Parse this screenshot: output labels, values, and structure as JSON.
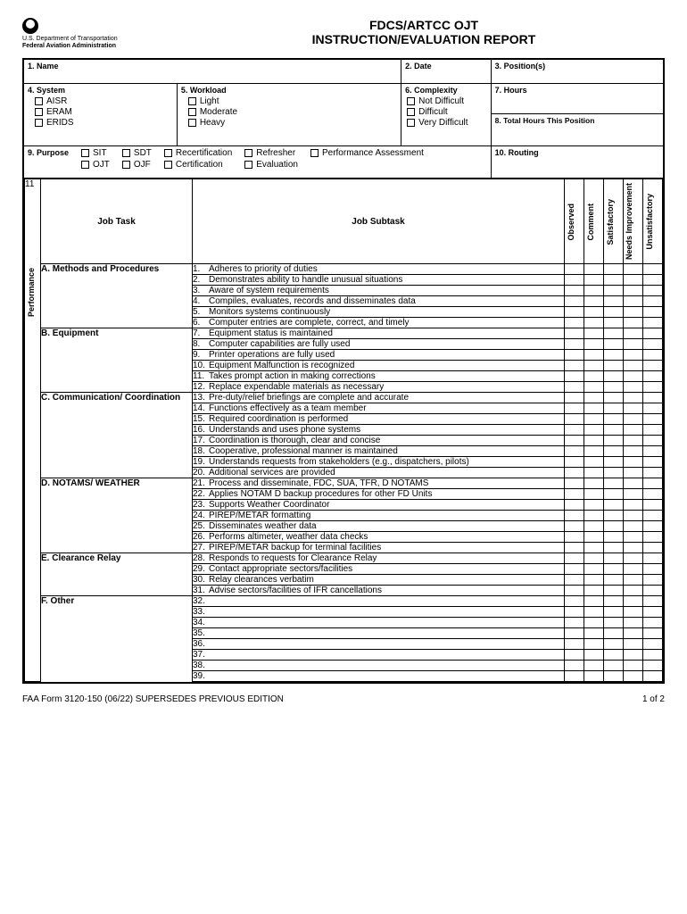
{
  "header": {
    "dept1": "U.S. Department of Transportation",
    "dept2": "Federal Aviation Administration",
    "title1": "FDCS/ARTCC OJT",
    "title2": "INSTRUCTION/EVALUATION REPORT"
  },
  "fields": {
    "f1": "1. Name",
    "f2": "2. Date",
    "f3": "3. Position(s)",
    "f4": "4. System",
    "f4a": "AISR",
    "f4b": "ERAM",
    "f4c": "ERIDS",
    "f5": "5. Workload",
    "f5a": "Light",
    "f5b": "Moderate",
    "f5c": "Heavy",
    "f6": "6. Complexity",
    "f6a": "Not Difficult",
    "f6b": "Difficult",
    "f6c": "Very Difficult",
    "f7": "7. Hours",
    "f8": "8. Total Hours This Position",
    "f9": "9. Purpose",
    "f9a": "SIT",
    "f9b": "OJT",
    "f9c": "SDT",
    "f9d": "OJF",
    "f9e": "Recertification",
    "f9f": "Certification",
    "f9g": "Refresher",
    "f9h": "Evaluation",
    "f9i": "Performance Assessment",
    "f10": "10. Routing",
    "f11": "11"
  },
  "cols": {
    "jobtask": "Job Task",
    "jobsubtask": "Job Subtask",
    "observed": "Observed",
    "comment": "Comment",
    "satisfactory": "Satisfactory",
    "needs": "Needs Improvement",
    "unsatisfactory": "Unsatisfactory",
    "performance": "Performance"
  },
  "sections": [
    {
      "label": "A. Methods and Procedures",
      "rows": [
        {
          "n": "1.",
          "t": "Adheres to priority of duties"
        },
        {
          "n": "2.",
          "t": "Demonstrates ability to handle unusual situations"
        },
        {
          "n": "3.",
          "t": "Aware of system requirements"
        },
        {
          "n": "4.",
          "t": "Compiles, evaluates, records and disseminates data"
        },
        {
          "n": "5.",
          "t": "Monitors systems continuously"
        },
        {
          "n": "6.",
          "t": "Computer entries are complete, correct, and timely"
        }
      ]
    },
    {
      "label": "B. Equipment",
      "rows": [
        {
          "n": "7.",
          "t": "Equipment status is maintained"
        },
        {
          "n": "8.",
          "t": "Computer capabilities are fully used"
        },
        {
          "n": "9.",
          "t": "Printer operations are fully used"
        },
        {
          "n": "10.",
          "t": "Equipment Malfunction is recognized"
        },
        {
          "n": "11.",
          "t": "Takes prompt action in making corrections"
        },
        {
          "n": "12.",
          "t": "Replace expendable materials as necessary"
        }
      ]
    },
    {
      "label": "C. Communication/ Coordination",
      "rows": [
        {
          "n": "13.",
          "t": "Pre-duty/relief briefings are complete and accurate"
        },
        {
          "n": "14.",
          "t": "Functions effectively as a team member"
        },
        {
          "n": "15.",
          "t": "Required coordination is performed"
        },
        {
          "n": "16.",
          "t": "Understands and uses phone systems"
        },
        {
          "n": "17.",
          "t": "Coordination is thorough, clear and concise"
        },
        {
          "n": "18.",
          "t": "Cooperative, professional manner is maintained"
        },
        {
          "n": "19.",
          "t": "Understands requests from stakeholders (e.g., dispatchers, pilots)"
        },
        {
          "n": "20.",
          "t": "Additional services are provided"
        }
      ]
    },
    {
      "label": "D. NOTAMS/ WEATHER",
      "rows": [
        {
          "n": "21.",
          "t": "Process and disseminate, FDC, SUA, TFR, D NOTAMS"
        },
        {
          "n": "22.",
          "t": "Applies NOTAM D backup procedures for other FD Units"
        },
        {
          "n": "23.",
          "t": "Supports Weather Coordinator"
        },
        {
          "n": "24.",
          "t": "PIREP/METAR formatting"
        },
        {
          "n": "25.",
          "t": "Disseminates weather data"
        },
        {
          "n": "26.",
          "t": "Performs altimeter, weather data checks"
        },
        {
          "n": "27.",
          "t": "PIREP/METAR backup for terminal facilities"
        }
      ]
    },
    {
      "label": "E. Clearance Relay",
      "rows": [
        {
          "n": "28.",
          "t": "Responds to requests for Clearance Relay"
        },
        {
          "n": "29.",
          "t": "Contact appropriate sectors/facilities"
        },
        {
          "n": "30.",
          "t": "Relay clearances verbatim"
        },
        {
          "n": "31.",
          "t": "Advise sectors/facilities of IFR cancellations"
        }
      ]
    },
    {
      "label": "F. Other",
      "rows": [
        {
          "n": "32.",
          "t": ""
        },
        {
          "n": "33.",
          "t": ""
        },
        {
          "n": "34.",
          "t": ""
        },
        {
          "n": "35.",
          "t": ""
        },
        {
          "n": "36.",
          "t": ""
        },
        {
          "n": "37.",
          "t": ""
        },
        {
          "n": "38.",
          "t": ""
        },
        {
          "n": "39.",
          "t": ""
        }
      ]
    }
  ],
  "footer": {
    "left": "FAA Form 3120-150  (06/22) SUPERSEDES PREVIOUS EDITION",
    "right": "1 of 2"
  }
}
